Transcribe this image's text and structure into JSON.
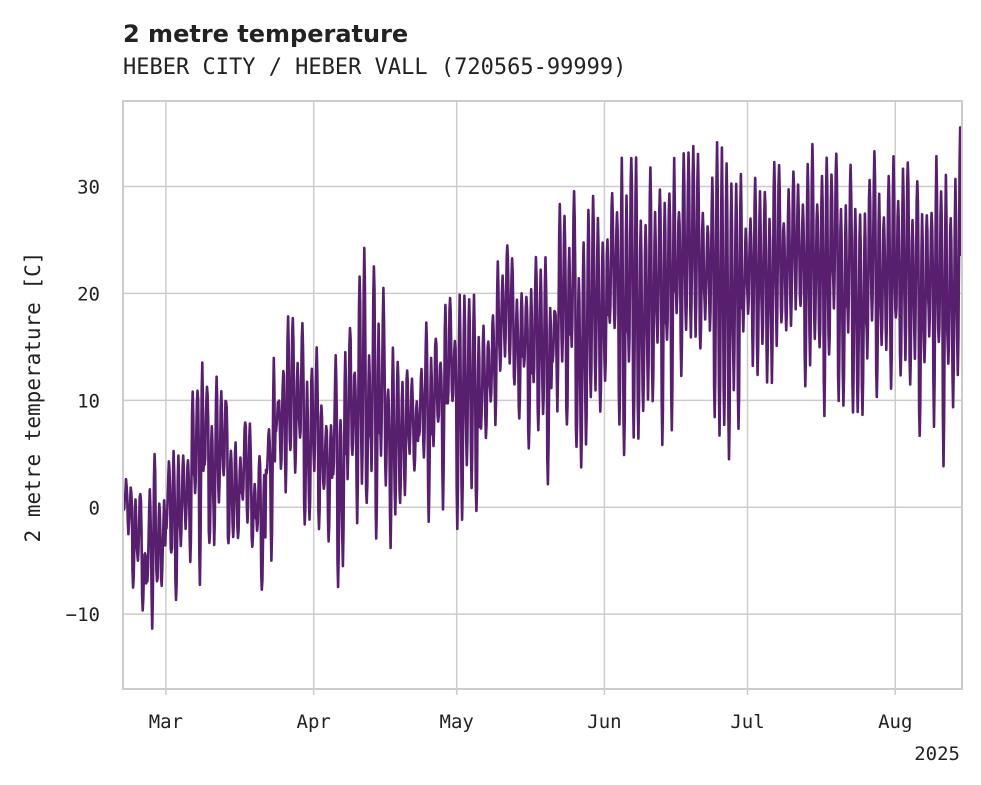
{
  "chart_data": {
    "type": "line",
    "title": "2 metre temperature",
    "subtitle": "HEBER CITY / HEBER VALL (720565-99999)",
    "xlabel": "",
    "ylabel": "2 metre temperature [C]",
    "x_tick_labels": [
      "Mar",
      "Apr",
      "May",
      "Jun",
      "Jul",
      "Aug"
    ],
    "x_year_label": "2025",
    "y_ticks": [
      -10,
      0,
      10,
      20,
      30
    ],
    "y_tick_labels": [
      "−10",
      "0",
      "10",
      "20",
      "30"
    ],
    "ylim": [
      -17,
      38
    ],
    "xlim": [
      "2025-02-20",
      "2025-08-15"
    ],
    "grid": true,
    "series": [
      {
        "color": "#581f6e",
        "x": [
          "2025-02-20",
          "2025-02-24",
          "2025-02-28",
          "2025-03-04",
          "2025-03-08",
          "2025-03-12",
          "2025-03-16",
          "2025-03-20",
          "2025-03-24",
          "2025-03-28",
          "2025-04-01",
          "2025-04-05",
          "2025-04-09",
          "2025-04-13",
          "2025-04-17",
          "2025-04-21",
          "2025-04-25",
          "2025-04-29",
          "2025-05-03",
          "2025-05-07",
          "2025-05-11",
          "2025-05-15",
          "2025-05-19",
          "2025-05-23",
          "2025-05-27",
          "2025-05-31",
          "2025-06-04",
          "2025-06-08",
          "2025-06-12",
          "2025-06-16",
          "2025-06-20",
          "2025-06-24",
          "2025-06-28",
          "2025-07-02",
          "2025-07-06",
          "2025-07-10",
          "2025-07-14",
          "2025-07-18",
          "2025-07-22",
          "2025-07-26",
          "2025-07-30",
          "2025-08-03",
          "2025-08-07",
          "2025-08-11",
          "2025-08-14"
        ],
        "daily_min": [
          -3,
          -13,
          -14,
          -11,
          -8,
          -5,
          -6,
          -10,
          -4,
          -3,
          -5,
          -9,
          -8,
          -6,
          -6,
          -4,
          -3,
          0,
          -3,
          2,
          5,
          4,
          -1,
          2,
          3,
          4,
          6,
          2,
          4,
          8,
          10,
          6,
          4,
          9,
          7,
          8,
          8,
          9,
          7,
          8,
          8,
          7,
          6,
          3,
          8
        ],
        "daily_max": [
          3,
          2,
          11,
          14,
          15,
          13,
          11,
          8,
          17,
          19,
          16,
          15,
          23,
          25,
          18,
          17,
          18,
          21,
          27,
          22,
          27,
          25,
          26,
          30,
          31,
          32,
          33,
          35,
          30,
          34,
          33,
          34,
          31,
          33,
          34,
          34,
          34,
          33,
          34,
          33,
          34,
          33,
          34,
          33,
          36
        ]
      }
    ]
  }
}
